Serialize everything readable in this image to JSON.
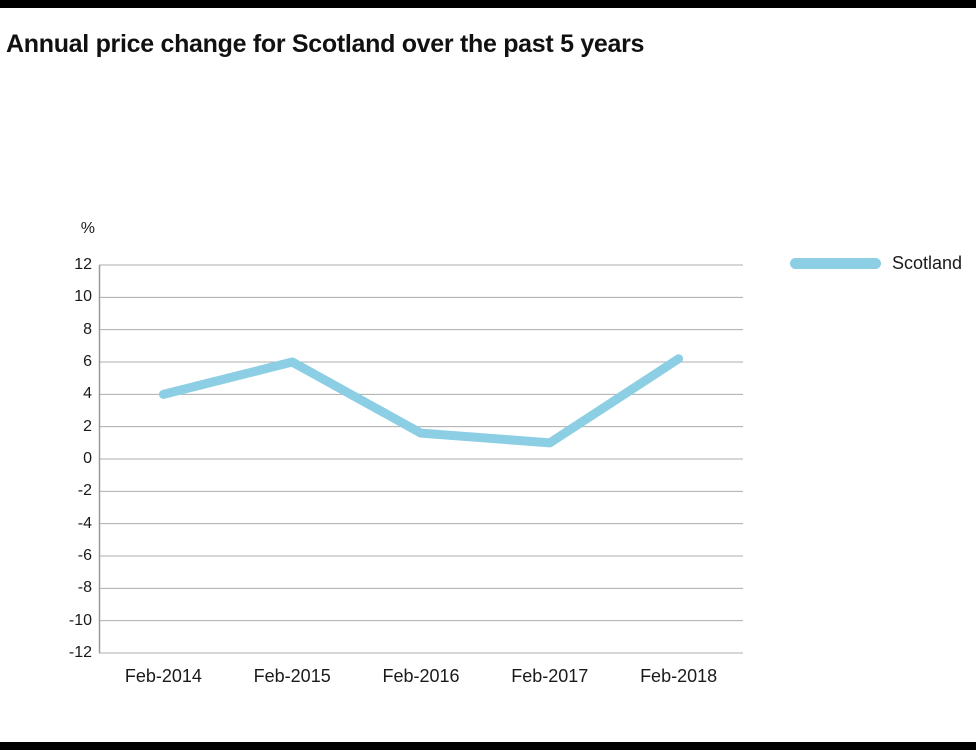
{
  "page": {
    "background": "#ffffff",
    "top_bar_color": "#000000",
    "bottom_bar_color": "#000000"
  },
  "chart_data": {
    "type": "line",
    "title": "Annual price change for Scotland over the past 5 years",
    "ylabel": "%",
    "xlabel": "",
    "categories": [
      "Feb-2014",
      "Feb-2015",
      "Feb-2016",
      "Feb-2017",
      "Feb-2018"
    ],
    "series": [
      {
        "name": "Scotland",
        "color": "#8ccee4",
        "values": [
          4.0,
          6.0,
          1.6,
          1.0,
          6.2
        ]
      }
    ],
    "ylim": [
      -12,
      12
    ],
    "ytick_step": 2,
    "grid": true,
    "gridline_color": "#adadad",
    "axis_color": "#999999",
    "line_width": 9,
    "legend_position": "right"
  },
  "legend": {
    "label": "Scotland",
    "color": "#8ccee4"
  }
}
